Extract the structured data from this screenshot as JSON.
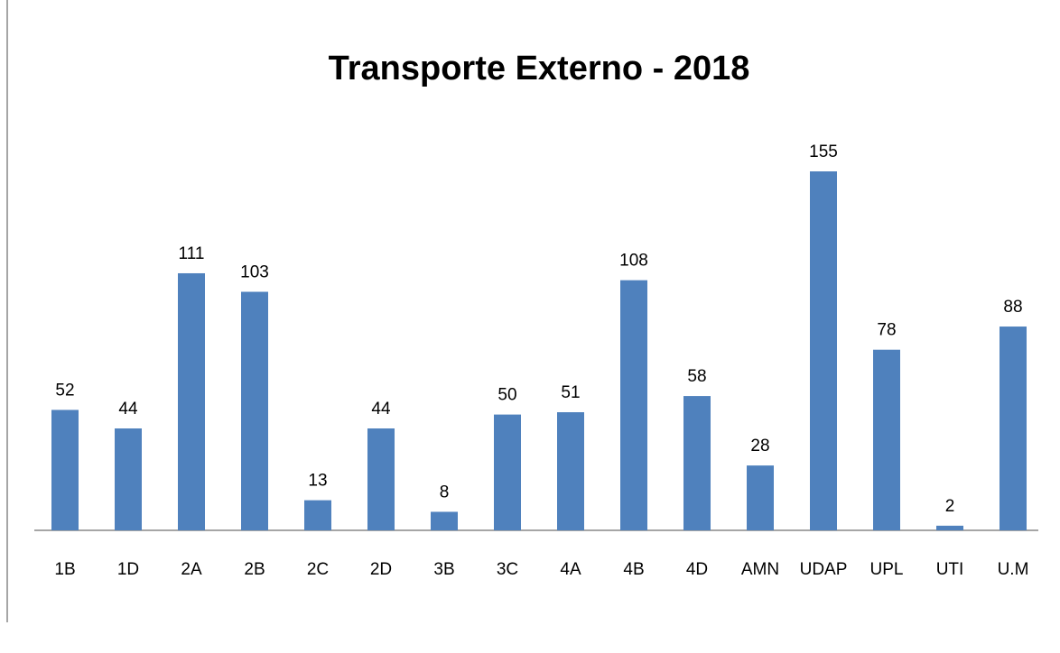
{
  "chart_data": {
    "type": "bar",
    "title": "Transporte Externo - 2018",
    "categories": [
      "1B",
      "1D",
      "2A",
      "2B",
      "2C",
      "2D",
      "3B",
      "3C",
      "4A",
      "4B",
      "4D",
      "AMN",
      "UDAP",
      "UPL",
      "UTI",
      "U.M"
    ],
    "values": [
      52,
      44,
      111,
      103,
      13,
      44,
      8,
      50,
      51,
      108,
      58,
      28,
      155,
      78,
      2,
      88
    ],
    "color": "#4f81bd"
  }
}
